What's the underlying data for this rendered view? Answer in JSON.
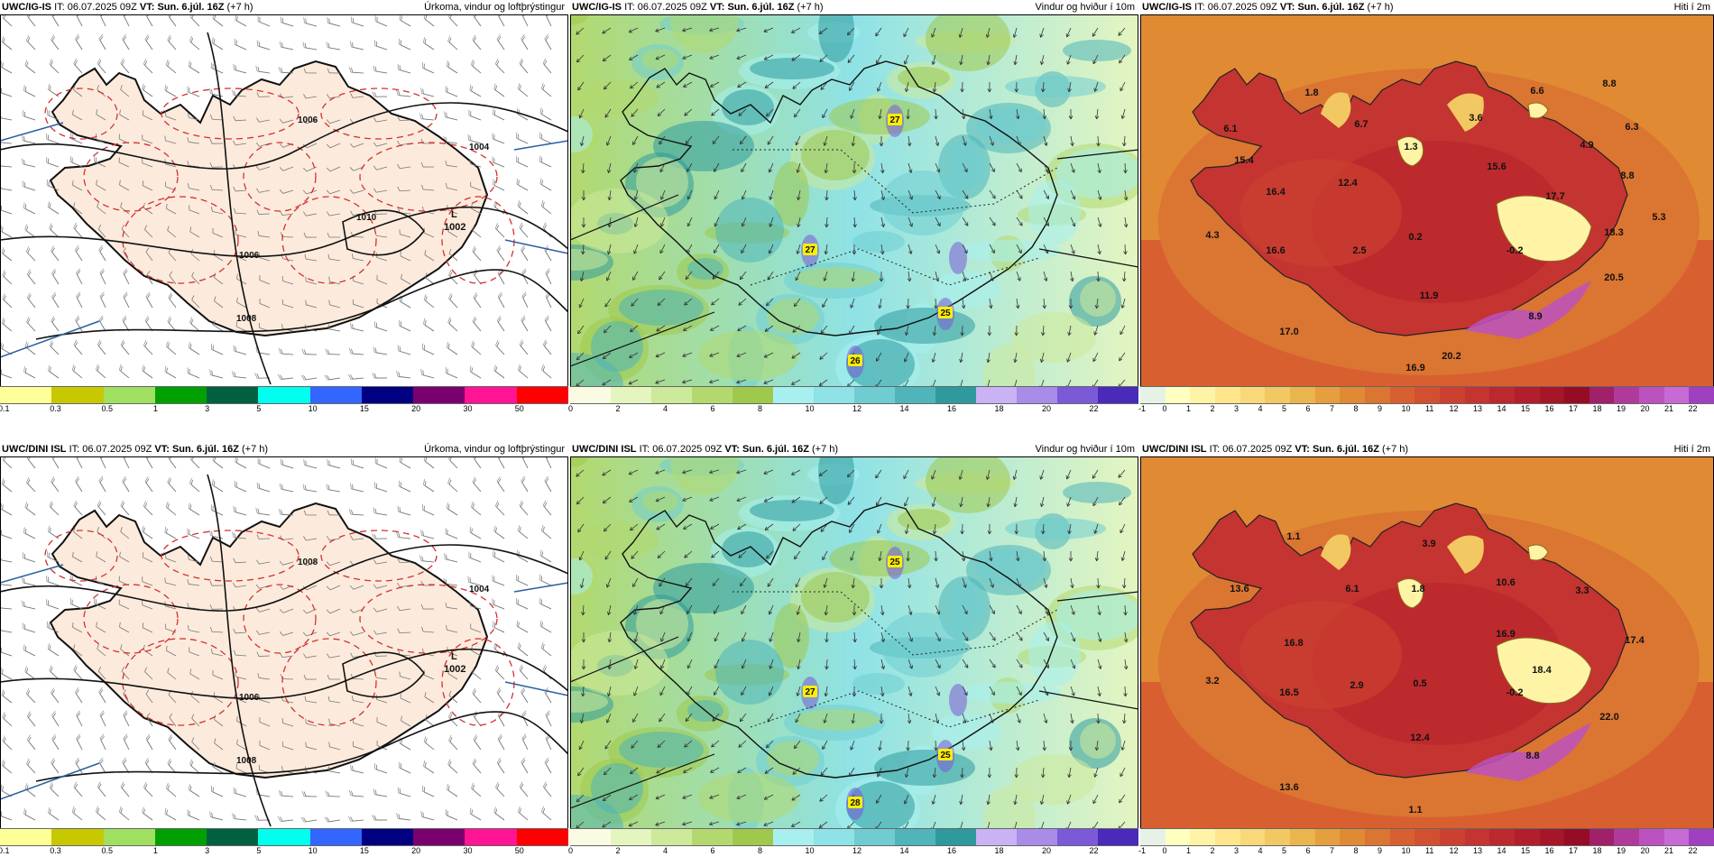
{
  "rows": [
    {
      "precip": {
        "model": "UWC/IG-IS",
        "it_label": "IT:",
        "it_value": "06.07.2025 09Z",
        "vt_label": "VT:",
        "vt_value": "Sun. 6.júl. 16Z",
        "lead": "(+7 h)",
        "title": "Úrkoma, vindur og loftþrýstingur",
        "low_symbol": "L",
        "low_value": "1002",
        "isobars": [
          "1006",
          "1004",
          "1006",
          "1008",
          "1010"
        ]
      },
      "wind": {
        "model": "UWC/IG-IS",
        "it_label": "IT:",
        "it_value": "06.07.2025 09Z",
        "vt_label": "VT:",
        "vt_value": "Sun. 6.júl. 16Z",
        "lead": "(+7 h)",
        "title": "Vindur og hviður í 10m",
        "gusts": [
          "27",
          "27",
          "25",
          "26"
        ]
      },
      "temp": {
        "model": "UWC/IG-IS",
        "it_label": "IT:",
        "it_value": "06.07.2025 09Z",
        "vt_label": "VT:",
        "vt_value": "Sun. 6.júl. 16Z",
        "lead": "(+7 h)",
        "title": "Hiti í 2m",
        "labels": [
          "1.8",
          "6.6",
          "8.8",
          "6.1",
          "6.7",
          "3.6",
          "6.3",
          "15.4",
          "1.3",
          "4.9",
          "12.4",
          "15.6",
          "8.8",
          "16.4",
          "17.7",
          "5.3",
          "4.3",
          "16.6",
          "2.5",
          "0.2",
          "-0.2",
          "18.3",
          "20.5",
          "11.9",
          "8.9",
          "17.0",
          "16.9",
          "20.2"
        ]
      }
    },
    {
      "precip": {
        "model": "UWC/DINI ISL",
        "it_label": "IT:",
        "it_value": "06.07.2025 09Z",
        "vt_label": "VT:",
        "vt_value": "Sun. 6.júl. 16Z",
        "lead": "(+7 h)",
        "title": "Úrkoma, vindur og loftþrýstingur",
        "low_symbol": "L",
        "low_value": "1002",
        "isobars": [
          "1008",
          "1004",
          "1006",
          "1008"
        ]
      },
      "wind": {
        "model": "UWC/DINI ISL",
        "it_label": "IT:",
        "it_value": "06.07.2025 09Z",
        "vt_label": "VT:",
        "vt_value": "Sun. 6.júl. 16Z",
        "lead": "(+7 h)",
        "title": "Vindur og hviður í 10m",
        "gusts": [
          "25",
          "27",
          "25",
          "28"
        ]
      },
      "temp": {
        "model": "UWC/DINI ISL",
        "it_label": "IT:",
        "it_value": "06.07.2025 09Z",
        "vt_label": "VT:",
        "vt_value": "Sun. 6.júl. 16Z",
        "lead": "(+7 h)",
        "title": "Hiti í 2m",
        "labels": [
          "1.1",
          "3.9",
          "13.6",
          "6.1",
          "1.8",
          "10.6",
          "3.3",
          "16.8",
          "16.9",
          "17.4",
          "3.2",
          "16.5",
          "2.9",
          "0.5",
          "-0.2",
          "18.4",
          "12.4",
          "22.0",
          "8.8",
          "13.6",
          "1.1"
        ]
      }
    }
  ],
  "colorbars": {
    "precip": {
      "colors": [
        "#ffff99",
        "#c8c800",
        "#a0e060",
        "#00a000",
        "#006040",
        "#00ffee",
        "#3366ff",
        "#000080",
        "#7a0070",
        "#ff1493",
        "#ff0000"
      ],
      "ticks": [
        "0.1",
        "0.3",
        "0.5",
        "1",
        "3",
        "5",
        "10",
        "15",
        "20",
        "30",
        "50"
      ]
    },
    "wind": {
      "colors": [
        "#fbfbe4",
        "#e4f5c0",
        "#cde99a",
        "#b3d96e",
        "#9fc94c",
        "#a8f0f0",
        "#8fe2e6",
        "#6fcdd2",
        "#4fb5ba",
        "#2e9a9e",
        "#c9b3f5",
        "#a98be8",
        "#7a5ad6",
        "#4a2ab8"
      ],
      "ticks": [
        "0",
        "2",
        "4",
        "6",
        "8",
        "10",
        "12",
        "14",
        "16",
        "18",
        "20",
        "22"
      ]
    },
    "temp": {
      "colors": [
        "#e6f2e6",
        "#ffffc0",
        "#fff3a6",
        "#ffe68c",
        "#f8d878",
        "#f2c862",
        "#ebb54e",
        "#e59f3e",
        "#e08a34",
        "#db7532",
        "#d86030",
        "#d25030",
        "#cc4030",
        "#c43430",
        "#bb282d",
        "#b01f2b",
        "#a41628",
        "#960c24",
        "#a0206a",
        "#b03a9a",
        "#bc52c0",
        "#c86ad6",
        "#a040c0"
      ],
      "ticks": [
        "-1",
        "0",
        "1",
        "2",
        "3",
        "4",
        "5",
        "6",
        "7",
        "8",
        "9",
        "10",
        "11",
        "12",
        "13",
        "14",
        "15",
        "16",
        "17",
        "18",
        "19",
        "20",
        "21",
        "22"
      ]
    }
  },
  "icons": {
    "low_pressure": "low-pressure-marker"
  }
}
